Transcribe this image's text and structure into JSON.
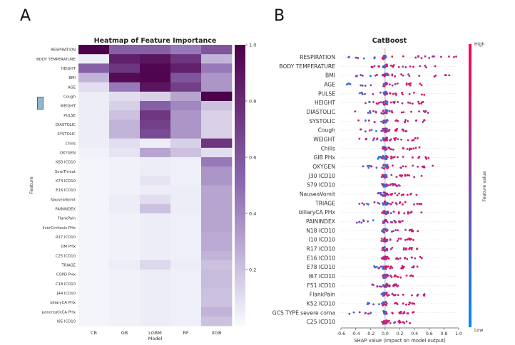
{
  "figure": {
    "panel_a_label": "A",
    "panel_b_label": "B"
  },
  "chart_data": [
    {
      "type": "heatmap",
      "title": "Heatmap of Feature Importance",
      "xlabel": "Model",
      "ylabel": "Feature",
      "columns": [
        "CB",
        "GB",
        "LGBM",
        "RF",
        "XGB"
      ],
      "rows": [
        "RESPIRATION",
        "BODY TEMPERATURE",
        "HEIGHT",
        "BMI",
        "AGE",
        "Cough",
        "WEIGHT",
        "PULSE",
        "DIASTOLIC",
        "SYSTOLIC",
        "Chills",
        "OXYGEN",
        "K83 ICD10",
        "SoreThroat",
        "K74 ICD10",
        "E16 ICD10",
        "NauseaVomit",
        "PAININDEX",
        "FlankPain",
        "liverCirrhosis PHx",
        "R17 ICD10",
        "DM PHx",
        "C25 ICD10",
        "TRIAGE",
        "COPD PHx",
        "C18 ICD10",
        "J44 ICD10",
        "biliaryCA PHx",
        "pancreaticCA PHx",
        "I85 ICD10"
      ],
      "values": [
        [
          1.0,
          0.55,
          0.55,
          0.45,
          0.6
        ],
        [
          0.05,
          0.85,
          0.9,
          0.75,
          0.25
        ],
        [
          0.55,
          0.75,
          0.97,
          0.85,
          0.45
        ],
        [
          0.25,
          0.95,
          0.98,
          0.6,
          0.35
        ],
        [
          0.1,
          0.45,
          0.9,
          0.7,
          0.35
        ],
        [
          0.05,
          0.1,
          0.15,
          0.3,
          1.0
        ],
        [
          0.05,
          0.15,
          0.55,
          0.4,
          0.2
        ],
        [
          0.05,
          0.2,
          0.75,
          0.35,
          0.15
        ],
        [
          0.05,
          0.25,
          0.7,
          0.35,
          0.15
        ],
        [
          0.05,
          0.25,
          0.65,
          0.35,
          0.15
        ],
        [
          0.05,
          0.1,
          0.05,
          0.15,
          0.75
        ],
        [
          0.03,
          0.08,
          0.3,
          0.2,
          0.1
        ],
        [
          0.02,
          0.03,
          0.05,
          0.04,
          0.45
        ],
        [
          0.02,
          0.03,
          0.05,
          0.04,
          0.35
        ],
        [
          0.02,
          0.03,
          0.08,
          0.04,
          0.35
        ],
        [
          0.02,
          0.03,
          0.05,
          0.05,
          0.3
        ],
        [
          0.02,
          0.05,
          0.1,
          0.05,
          0.3
        ],
        [
          0.02,
          0.05,
          0.2,
          0.05,
          0.3
        ],
        [
          0.02,
          0.03,
          0.05,
          0.04,
          0.3
        ],
        [
          0.02,
          0.03,
          0.05,
          0.04,
          0.3
        ],
        [
          0.02,
          0.03,
          0.05,
          0.04,
          0.28
        ],
        [
          0.02,
          0.03,
          0.05,
          0.04,
          0.28
        ],
        [
          0.02,
          0.03,
          0.05,
          0.04,
          0.25
        ],
        [
          0.02,
          0.05,
          0.12,
          0.05,
          0.2
        ],
        [
          0.02,
          0.03,
          0.05,
          0.04,
          0.22
        ],
        [
          0.02,
          0.03,
          0.05,
          0.04,
          0.22
        ],
        [
          0.02,
          0.03,
          0.05,
          0.04,
          0.2
        ],
        [
          0.02,
          0.03,
          0.05,
          0.04,
          0.2
        ],
        [
          0.02,
          0.03,
          0.05,
          0.04,
          0.25
        ],
        [
          0.02,
          0.03,
          0.05,
          0.04,
          0.2
        ]
      ],
      "vmin": 0.0,
      "vmax": 1.0,
      "colorbar_ticks": [
        "1.0",
        "0.8",
        "0.6",
        "0.4",
        "0.2"
      ],
      "colorbar_tick_values": [
        1.0,
        0.8,
        0.6,
        0.4,
        0.2
      ],
      "colors": {
        "low": "#f7fbfe",
        "mid": "#8c6bb1",
        "high": "#4d004b"
      }
    },
    {
      "type": "scatter",
      "title": "CatBoost",
      "xlabel": "SHAP value (impact on model output)",
      "xlim": [
        -0.6,
        1.0
      ],
      "xticks": [
        "-0.6",
        "-0.4",
        "-0.2",
        "0.0",
        "0.2",
        "0.4",
        "0.6",
        "0.8",
        "1.0"
      ],
      "xtick_values": [
        -0.6,
        -0.4,
        -0.2,
        0.0,
        0.2,
        0.4,
        0.6,
        0.8,
        1.0
      ],
      "colorbar": {
        "label": "Feature value",
        "high": "High",
        "low": "Low",
        "high_color": "#ff0052",
        "low_color": "#008bfb"
      },
      "features": [
        {
          "name": "RESPIRATION",
          "range": [
            -0.5,
            0.98
          ]
        },
        {
          "name": "BODY TEMPERATURE",
          "range": [
            -0.3,
            0.75
          ]
        },
        {
          "name": "BMI",
          "range": [
            -0.45,
            0.92
          ]
        },
        {
          "name": "AGE",
          "range": [
            -0.55,
            0.5
          ]
        },
        {
          "name": "PULSE",
          "range": [
            -0.35,
            0.55
          ]
        },
        {
          "name": "HEIGHT",
          "range": [
            -0.4,
            0.65
          ]
        },
        {
          "name": "DIASTOLIC",
          "range": [
            -0.45,
            0.6
          ]
        },
        {
          "name": "SYSTOLIC",
          "range": [
            -0.4,
            0.55
          ]
        },
        {
          "name": "Cough",
          "range": [
            -0.35,
            0.3
          ]
        },
        {
          "name": "WEIGHT",
          "range": [
            -0.4,
            0.45
          ]
        },
        {
          "name": "Chills",
          "range": [
            -0.05,
            0.5
          ]
        },
        {
          "name": "GIB PHx",
          "range": [
            -0.1,
            0.6
          ]
        },
        {
          "name": "OXYGEN",
          "range": [
            -0.3,
            0.75
          ]
        },
        {
          "name": "J30 ICD10",
          "range": [
            -0.05,
            0.5
          ]
        },
        {
          "name": "S79 ICD10",
          "range": [
            -0.05,
            0.2
          ]
        },
        {
          "name": "NauseaVomit",
          "range": [
            -0.1,
            0.45
          ]
        },
        {
          "name": "TRIAGE",
          "range": [
            -0.35,
            0.5
          ]
        },
        {
          "name": "biliaryCA PHx",
          "range": [
            -0.05,
            0.5
          ]
        },
        {
          "name": "PAININDEX",
          "range": [
            -0.4,
            0.25
          ]
        },
        {
          "name": "N18 ICD10",
          "range": [
            -0.05,
            0.45
          ]
        },
        {
          "name": "I10 ICD10",
          "range": [
            -0.05,
            0.4
          ]
        },
        {
          "name": "R17 ICD10",
          "range": [
            -0.05,
            0.45
          ]
        },
        {
          "name": "E16 ICD10",
          "range": [
            -0.05,
            0.5
          ]
        },
        {
          "name": "E78 ICD10",
          "range": [
            -0.15,
            0.45
          ]
        },
        {
          "name": "I67 ICD10",
          "range": [
            -0.05,
            0.4
          ]
        },
        {
          "name": "F51 ICD10",
          "range": [
            -0.2,
            0.2
          ]
        },
        {
          "name": "FlankPain",
          "range": [
            -0.05,
            0.55
          ]
        },
        {
          "name": "K52 ICD10",
          "range": [
            -0.25,
            0.45
          ]
        },
        {
          "name": "GCS TYPE severe coma",
          "range": [
            -0.5,
            0.45
          ]
        },
        {
          "name": "C25 ICD10",
          "range": [
            -0.05,
            0.35
          ]
        }
      ]
    }
  ]
}
